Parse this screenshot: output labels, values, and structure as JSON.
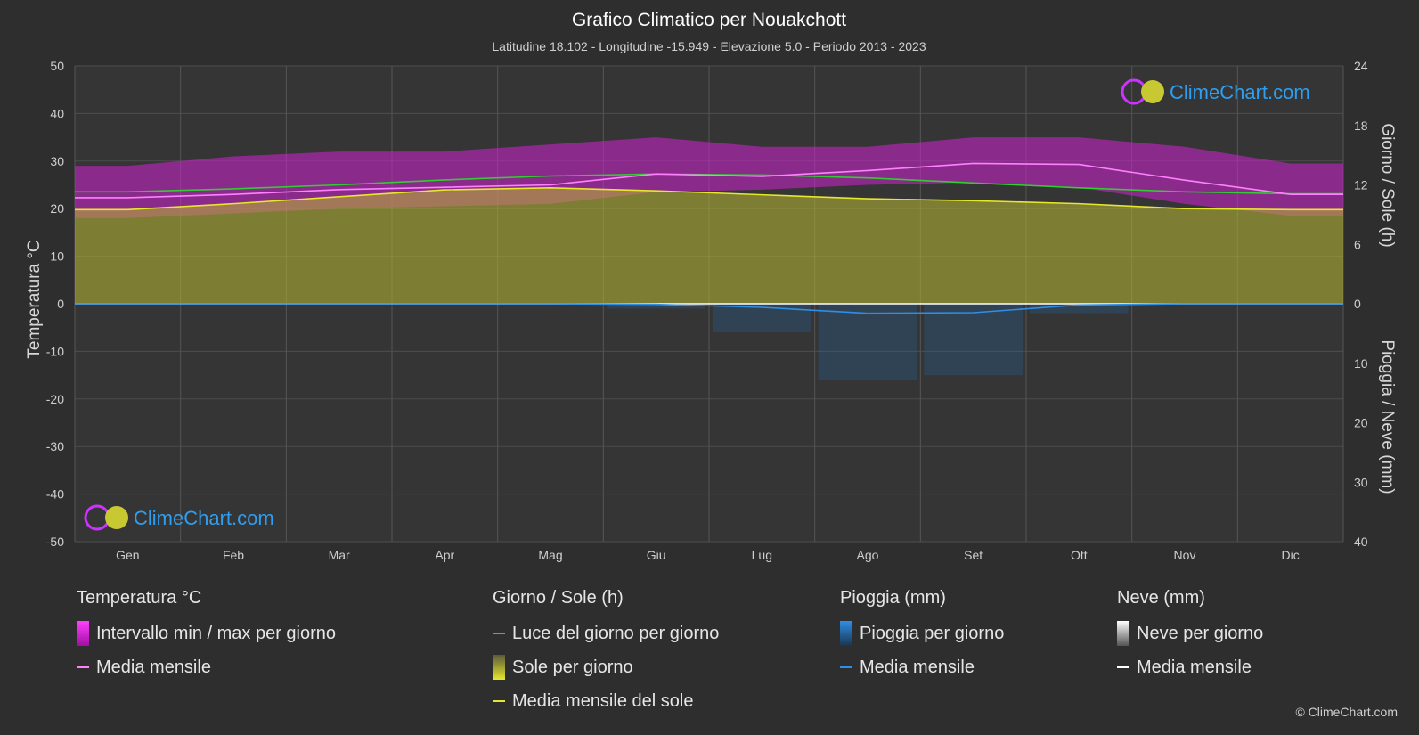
{
  "header": {
    "title": "Grafico Climatico per Nouakchott",
    "subtitle": "Latitudine 18.102 - Longitudine -15.949 - Elevazione 5.0 - Periodo 2013 - 2023"
  },
  "watermark": {
    "text": "ClimeChart.com"
  },
  "copyright": "© ClimeChart.com",
  "colors": {
    "temp_range": "#d020d0",
    "temp_mean": "#ff80ff",
    "daylight": "#33cc33",
    "sunshine": "#b8b832",
    "sun_mean": "#e6e62e",
    "rain": "#1e6fb8",
    "rain_mean": "#2f8ee6",
    "snow_mean": "#ffffff"
  },
  "chart_data": {
    "type": "area",
    "categories": [
      "Gen",
      "Feb",
      "Mar",
      "Apr",
      "Mag",
      "Giu",
      "Lug",
      "Ago",
      "Set",
      "Ott",
      "Nov",
      "Dic"
    ],
    "y_left": {
      "label": "Temperatura °C",
      "range": [
        -50,
        50
      ],
      "ticks": [
        50,
        40,
        30,
        20,
        10,
        0,
        -10,
        -20,
        -30,
        -40,
        -50
      ]
    },
    "y_right_top": {
      "label": "Giorno / Sole (h)",
      "range": [
        0,
        24
      ],
      "ticks": [
        24,
        18,
        12,
        6,
        0
      ]
    },
    "y_right_bottom": {
      "label": "Pioggia / Neve (mm)",
      "range": [
        0,
        40
      ],
      "ticks": [
        10,
        20,
        30,
        40
      ]
    },
    "series": [
      {
        "name": "Media mensile",
        "group": "Temperatura °C",
        "unit": "°C",
        "values": [
          22.3,
          23.0,
          24.0,
          24.5,
          25.0,
          27.3,
          26.8,
          28.0,
          29.5,
          29.3,
          26.0,
          23.0
        ]
      },
      {
        "name": "Intervallo min / max per giorno",
        "group": "Temperatura °C",
        "unit": "°C",
        "min": [
          18.0,
          19.0,
          20.0,
          20.5,
          21.0,
          23.5,
          24.0,
          25.0,
          25.5,
          24.5,
          21.0,
          18.5
        ],
        "max": [
          29.0,
          31.0,
          32.0,
          32.0,
          33.5,
          35.0,
          33.0,
          33.0,
          35.0,
          35.0,
          33.0,
          29.5
        ]
      },
      {
        "name": "Luce del giorno per giorno",
        "group": "Giorno / Sole (h)",
        "unit": "h",
        "values": [
          11.3,
          11.6,
          12.0,
          12.5,
          12.9,
          13.1,
          13.0,
          12.7,
          12.2,
          11.7,
          11.3,
          11.1
        ]
      },
      {
        "name": "Media mensile del sole",
        "group": "Giorno / Sole (h)",
        "unit": "h",
        "values": [
          9.5,
          10.1,
          10.8,
          11.5,
          11.7,
          11.4,
          11.0,
          10.6,
          10.4,
          10.1,
          9.6,
          9.5
        ]
      },
      {
        "name": "Media mensile",
        "group": "Pioggia (mm)",
        "unit": "mm",
        "values": [
          0.0,
          0.0,
          0.0,
          0.0,
          0.0,
          0.1,
          0.6,
          1.6,
          1.5,
          0.2,
          0.0,
          0.0
        ]
      },
      {
        "name": "Media mensile",
        "group": "Neve (mm)",
        "unit": "mm",
        "values": [
          0,
          0,
          0,
          0,
          0,
          0,
          0,
          0,
          0,
          0,
          0,
          0
        ]
      }
    ]
  },
  "legend": {
    "temperature": {
      "title": "Temperatura °C",
      "items": [
        "Intervallo min / max per giorno",
        "Media mensile"
      ]
    },
    "sun": {
      "title": "Giorno / Sole (h)",
      "items": [
        "Luce del giorno per giorno",
        "Sole per giorno",
        "Media mensile del sole"
      ]
    },
    "rain": {
      "title": "Pioggia (mm)",
      "items": [
        "Pioggia per giorno",
        "Media mensile"
      ]
    },
    "snow": {
      "title": "Neve (mm)",
      "items": [
        "Neve per giorno",
        "Media mensile"
      ]
    }
  }
}
